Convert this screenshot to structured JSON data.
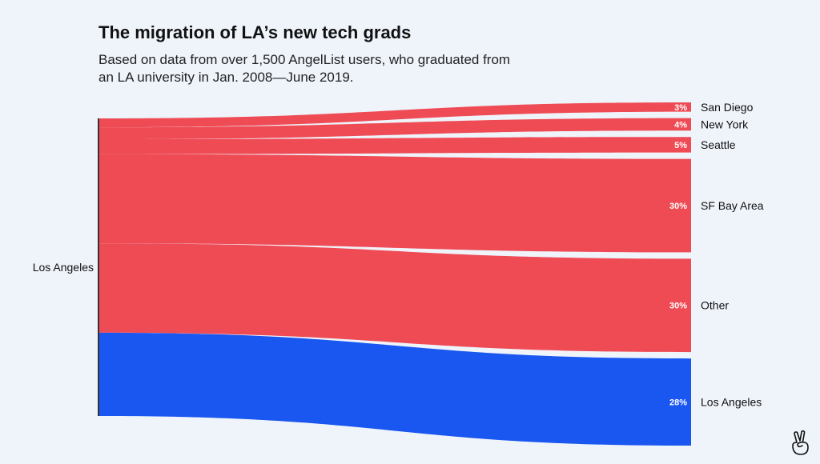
{
  "title": "The migration of LA’s new tech grads",
  "subtitle": "Based on data from over 1,500 AngelList users, who graduated from an LA university in Jan. 2008—June 2019.",
  "colors": {
    "moved": "#ef4b55",
    "stayed": "#1a56f0",
    "background": "#eff4fb"
  },
  "logo_icon": "angellist-peace-hand-icon",
  "chart_data": {
    "type": "sankey",
    "source": "Los Angeles",
    "flows": [
      {
        "target": "San Diego",
        "value": 3,
        "label": "3%",
        "color": "#ef4b55"
      },
      {
        "target": "New York",
        "value": 4,
        "label": "4%",
        "color": "#ef4b55"
      },
      {
        "target": "Seattle",
        "value": 5,
        "label": "5%",
        "color": "#ef4b55"
      },
      {
        "target": "SF Bay Area",
        "value": 30,
        "label": "30%",
        "color": "#ef4b55"
      },
      {
        "target": "Other",
        "value": 30,
        "label": "30%",
        "color": "#ef4b55"
      },
      {
        "target": "Los Angeles",
        "value": 28,
        "label": "28%",
        "color": "#1a56f0"
      }
    ]
  }
}
